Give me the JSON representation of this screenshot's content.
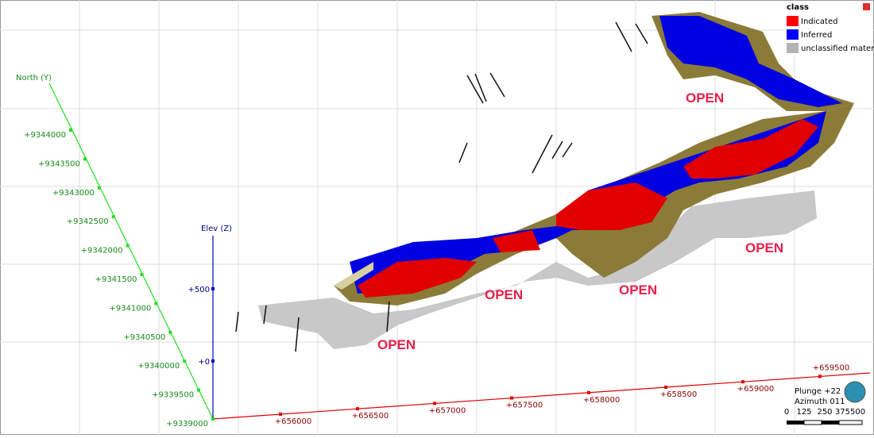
{
  "legend": {
    "title": "class",
    "items": [
      {
        "label": "Indicated",
        "color": "#ff0000"
      },
      {
        "label": "Inferred",
        "color": "#0000ff"
      },
      {
        "label": "unclassified material",
        "color": "#b4b4b4"
      }
    ]
  },
  "axes": {
    "north": {
      "label": "North (Y)",
      "ticks": [
        "+9339000",
        "+9339500",
        "+9340000",
        "+9340500",
        "+9341000",
        "+9341500",
        "+9342000",
        "+9342500",
        "+9343000",
        "+9343500",
        "+9344000"
      ]
    },
    "elev": {
      "label": "Elev (Z)",
      "ticks": [
        "+0",
        "+500"
      ]
    },
    "east": {
      "ticks": [
        "+656000",
        "+656500",
        "+657000",
        "+657500",
        "+658000",
        "+658500",
        "+659000",
        "+659500"
      ]
    }
  },
  "annotations": [
    "OPEN",
    "OPEN",
    "OPEN",
    "OPEN",
    "OPEN"
  ],
  "view": {
    "plunge": "Plunge +22",
    "azimuth": "Azimuth 011"
  },
  "scale_bar": [
    "0",
    "125",
    "250",
    "375500"
  ]
}
